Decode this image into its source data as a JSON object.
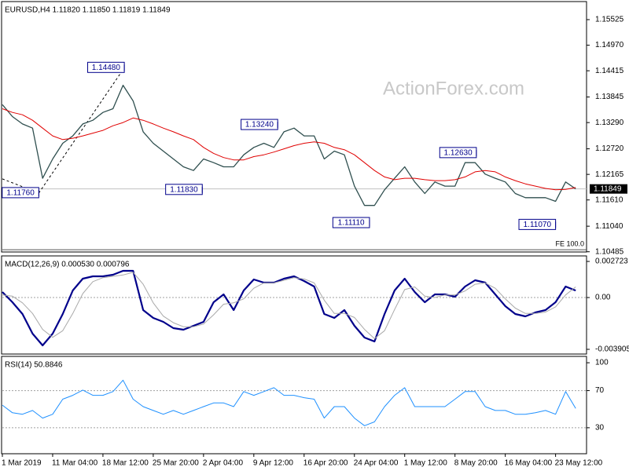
{
  "chart_data": [
    {
      "type": "line",
      "title": "EURUSD,H4  1.11820 1.11850 1.11819 1.11849",
      "watermark": "ActionForex.com",
      "x": [
        0,
        8,
        16,
        24,
        32,
        40,
        48,
        56,
        64,
        72,
        80,
        88,
        96,
        104,
        112,
        120,
        128,
        136,
        144,
        152,
        160,
        168,
        176,
        184,
        192,
        200,
        208,
        216,
        224,
        232,
        240,
        248,
        256,
        264,
        272,
        280,
        288,
        296,
        304,
        312,
        320,
        328,
        336,
        344,
        352,
        360,
        368,
        376,
        384,
        392,
        400,
        408,
        416,
        424,
        432,
        440,
        448,
        456
      ],
      "xlim": [
        0,
        464
      ],
      "series": [
        {
          "color": "#2f4f4f",
          "width": 1.3,
          "values": [
            1.1368,
            1.1342,
            1.1326,
            1.1317,
            1.1208,
            1.125,
            1.1284,
            1.13,
            1.1326,
            1.1334,
            1.1351,
            1.1359,
            1.141,
            1.1376,
            1.1309,
            1.1284,
            1.1267,
            1.125,
            1.1233,
            1.1225,
            1.125,
            1.1242,
            1.1233,
            1.1233,
            1.1259,
            1.1275,
            1.1284,
            1.1275,
            1.1309,
            1.1317,
            1.13,
            1.13,
            1.125,
            1.1267,
            1.1259,
            1.1191,
            1.1149,
            1.1149,
            1.1183,
            1.1208,
            1.1233,
            1.12,
            1.1175,
            1.12,
            1.1191,
            1.1191,
            1.1242,
            1.1242,
            1.1217,
            1.1208,
            1.12,
            1.1175,
            1.1166,
            1.1166,
            1.1166,
            1.1158,
            1.12,
            1.1185
          ]
        },
        {
          "color": "#e00000",
          "width": 1,
          "values": [
            1.1359,
            1.1351,
            1.1346,
            1.1334,
            1.1317,
            1.13,
            1.1292,
            1.1295,
            1.13,
            1.1306,
            1.1312,
            1.1322,
            1.1329,
            1.1339,
            1.1334,
            1.1326,
            1.1317,
            1.1309,
            1.13,
            1.1292,
            1.1275,
            1.1262,
            1.1253,
            1.1248,
            1.1248,
            1.1255,
            1.1259,
            1.1265,
            1.1272,
            1.1279,
            1.1284,
            1.1287,
            1.1284,
            1.1275,
            1.127,
            1.1259,
            1.1242,
            1.1225,
            1.1211,
            1.1205,
            1.1208,
            1.1208,
            1.1205,
            1.1203,
            1.1203,
            1.1205,
            1.1211,
            1.1222,
            1.1225,
            1.1222,
            1.1211,
            1.1203,
            1.1196,
            1.1191,
            1.1186,
            1.1183,
            1.1184,
            1.1188
          ]
        }
      ],
      "ylim": [
        1.1048,
        1.159
      ],
      "yticks": [
        1.15525,
        {
          "value": 1.1497,
          "label": "1.14970"
        },
        1.14415,
        1.13845,
        {
          "value": 1.1329,
          "label": "1.13290"
        },
        {
          "value": 1.1272,
          "label": "1.12720"
        },
        1.12165,
        {
          "value": 1.1161,
          "label": "1.11610"
        },
        {
          "value": 1.1104,
          "label": "1.11040"
        },
        1.10485
      ],
      "last_price": 1.11849,
      "fe_level": {
        "value": 1.1053,
        "label": "FE 100.0"
      },
      "annotations": [
        {
          "x": 29,
          "value": 1.1176,
          "label": "1.11760"
        },
        {
          "x": 97,
          "value": 1.1448,
          "label": "1.14480"
        },
        {
          "x": 159,
          "value": 1.1183,
          "label": "1.11830"
        },
        {
          "x": 219,
          "value": 1.1324,
          "label": "1.13240"
        },
        {
          "x": 292,
          "value": 1.1111,
          "label": "1.11110"
        },
        {
          "x": 377,
          "value": 1.1263,
          "label": "1.12630"
        },
        {
          "x": 440,
          "value": 1.1107,
          "label": "1.11070"
        }
      ]
    },
    {
      "type": "line",
      "title": "MACD(12,26,9) 0.000530 0.000796",
      "x": [
        0,
        8,
        16,
        24,
        32,
        40,
        48,
        56,
        64,
        72,
        80,
        88,
        96,
        104,
        112,
        120,
        128,
        136,
        144,
        152,
        160,
        168,
        176,
        184,
        192,
        200,
        208,
        216,
        224,
        232,
        240,
        248,
        256,
        264,
        272,
        280,
        288,
        296,
        304,
        312,
        320,
        328,
        336,
        344,
        352,
        360,
        368,
        376,
        384,
        392,
        400,
        408,
        416,
        424,
        432,
        440,
        448,
        456
      ],
      "xlim": [
        0,
        464
      ],
      "series": [
        {
          "color": "#00008b",
          "width": 2.2,
          "values": [
            0.000414,
            -0.000355,
            -0.001243,
            -0.002723,
            -0.003611,
            -0.002723,
            -0.001243,
            0.000533,
            0.001421,
            0.001598,
            0.001598,
            0.001717,
            0.002013,
            0.002013,
            -0.000947,
            -0.001539,
            -0.001835,
            -0.002309,
            -0.002427,
            -0.002131,
            -0.001835,
            -0.000355,
            0.000237,
            -0.000947,
            0.000533,
            0.001362,
            0.001125,
            0.001125,
            0.001421,
            0.001598,
            0.001243,
            0.000829,
            -0.001243,
            -0.001539,
            -0.000947,
            -0.002131,
            -0.003019,
            -0.003315,
            -0.001243,
            0.000533,
            0.001421,
            0.000414,
            -0.000355,
            0.000237,
            0.000237,
            5.9e-05,
            0.000829,
            0.001302,
            0.001125,
            0.000237,
            -0.000651,
            -0.001243,
            -0.001421,
            -0.001125,
            -0.000947,
            -0.000355,
            0.000829,
            0.00053
          ]
        },
        {
          "color": "#a9a9a9",
          "width": 1,
          "values": [
            0.0002,
            0.0001,
            -0.0004,
            -0.0012,
            -0.0024,
            -0.003,
            -0.0025,
            -0.0012,
            0.0003,
            0.0012,
            0.0015,
            0.0016,
            0.0017,
            0.0019,
            0.001,
            -0.0004,
            -0.0014,
            -0.0019,
            -0.0022,
            -0.0022,
            -0.002,
            -0.0013,
            -0.0005,
            -0.0004,
            -0.0001,
            0.0007,
            0.0011,
            0.0011,
            0.0013,
            0.0015,
            0.0014,
            0.0011,
            -0.0002,
            -0.0012,
            -0.0012,
            -0.0015,
            -0.0024,
            -0.0031,
            -0.0025,
            -0.0009,
            0.0006,
            0.0008,
            0.0001,
            0.0,
            0.0002,
            0.0002,
            0.0005,
            0.001,
            0.0011,
            0.0007,
            -0.0001,
            -0.0008,
            -0.0012,
            -0.0012,
            -0.0011,
            -0.0007,
            0.0002,
            0.0008
          ]
        }
      ],
      "ylim": [
        -0.00426,
        0.00308
      ],
      "yticks": [
        0.002723,
        {
          "value": 0,
          "label": "0.00"
        },
        -0.003905
      ],
      "levels": [
        0
      ]
    },
    {
      "type": "line",
      "title": "RSI(14) 50.8846",
      "x": [
        0,
        8,
        16,
        24,
        32,
        40,
        48,
        56,
        64,
        72,
        80,
        88,
        96,
        104,
        112,
        120,
        128,
        136,
        144,
        152,
        160,
        168,
        176,
        184,
        192,
        200,
        208,
        216,
        224,
        232,
        240,
        248,
        256,
        264,
        272,
        280,
        288,
        296,
        304,
        312,
        320,
        328,
        336,
        344,
        352,
        360,
        368,
        376,
        384,
        392,
        400,
        408,
        416,
        424,
        432,
        440,
        448,
        456
      ],
      "xlim": [
        0,
        464
      ],
      "series": [
        {
          "color": "#1e90ff",
          "width": 1,
          "values": [
            54.3,
            46.1,
            44.5,
            48.6,
            40.4,
            44.5,
            60.8,
            64.9,
            70.6,
            64.9,
            64.9,
            69.0,
            81.2,
            60.8,
            52.7,
            48.6,
            44.5,
            48.6,
            44.5,
            48.6,
            52.7,
            56.7,
            56.7,
            52.7,
            69.0,
            64.9,
            69.0,
            73.1,
            64.9,
            64.9,
            62.4,
            60.8,
            40.4,
            52.7,
            52.7,
            40.4,
            32.2,
            36.3,
            52.7,
            64.9,
            73.1,
            52.7,
            52.7,
            52.7,
            52.7,
            60.8,
            69.0,
            69.0,
            52.7,
            48.6,
            48.6,
            44.5,
            44.5,
            46.1,
            48.6,
            44.5,
            69.0,
            50.9
          ]
        }
      ],
      "ylim": [
        2,
        106
      ],
      "yticks": [
        100,
        70,
        30
      ],
      "levels": [
        70,
        30
      ],
      "xticks": [
        {
          "value": 0,
          "label": "1 Mar 2019"
        },
        {
          "value": 40,
          "label": "11 Mar 04:00"
        },
        {
          "value": 80,
          "label": "18 Mar 12:00"
        },
        {
          "value": 120,
          "label": "25 Mar 20:00"
        },
        {
          "value": 160,
          "label": "2 Apr 04:00"
        },
        {
          "value": 200,
          "label": "9 Apr 12:00"
        },
        {
          "value": 240,
          "label": "16 Apr 20:00"
        },
        {
          "value": 280,
          "label": "24 Apr 04:00"
        },
        {
          "value": 320,
          "label": "1 May 12:00"
        },
        {
          "value": 360,
          "label": "8 May 20:00"
        },
        {
          "value": 400,
          "label": "16 May 04:00"
        },
        {
          "value": 440,
          "label": "23 May 12:00"
        }
      ]
    }
  ]
}
